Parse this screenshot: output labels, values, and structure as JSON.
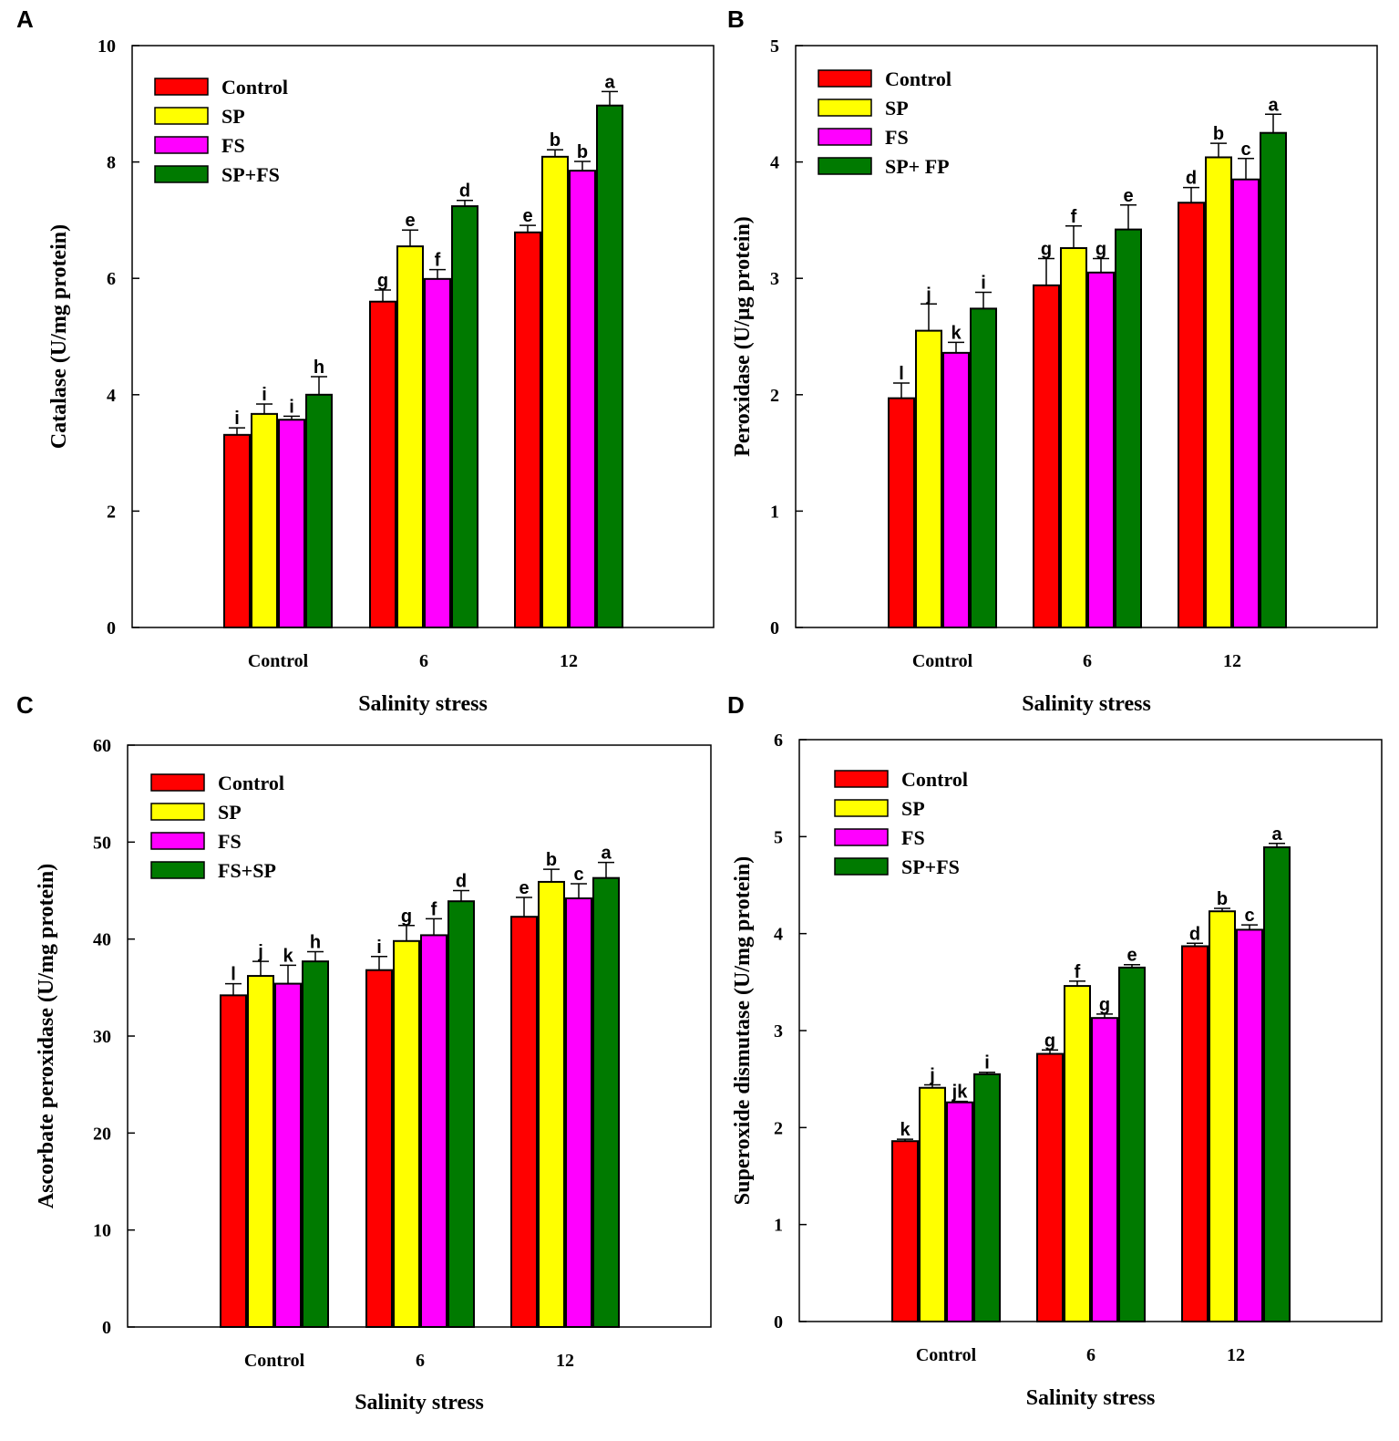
{
  "colors": {
    "Control": "#ff0000",
    "SP": "#ffff00",
    "FS": "#ff00ff",
    "Combo": "#007a00"
  },
  "chart_data": [
    {
      "type": "bar",
      "panel": "A",
      "ylabel": "Catalase (U/mg protein)",
      "xlabel": "Salinity stress",
      "ylim": [
        0,
        10
      ],
      "yticks": [
        0,
        2,
        4,
        6,
        8,
        10
      ],
      "categories": [
        "Control",
        "6",
        "12"
      ],
      "series": [
        {
          "name": "Control",
          "values": [
            3.31,
            5.6,
            6.79
          ],
          "errors": [
            0.12,
            0.2,
            0.12
          ],
          "letters": [
            "i",
            "g",
            "e"
          ]
        },
        {
          "name": "SP",
          "values": [
            3.67,
            6.55,
            8.09
          ],
          "errors": [
            0.17,
            0.28,
            0.12
          ],
          "letters": [
            "i",
            "e",
            "b"
          ]
        },
        {
          "name": "FS",
          "values": [
            3.57,
            5.99,
            7.85
          ],
          "errors": [
            0.06,
            0.16,
            0.16
          ],
          "letters": [
            "i",
            "f",
            "b"
          ]
        },
        {
          "name": "SP+FS",
          "values": [
            4.0,
            7.24,
            8.97
          ],
          "errors": [
            0.31,
            0.1,
            0.24
          ],
          "letters": [
            "h",
            "d",
            "a"
          ]
        }
      ]
    },
    {
      "type": "bar",
      "panel": "B",
      "ylabel": "Peroxidase (U/µg protein)",
      "xlabel": "Salinity stress",
      "ylim": [
        0,
        5
      ],
      "yticks": [
        0,
        1,
        2,
        3,
        4,
        5
      ],
      "categories": [
        "Control",
        "6",
        "12"
      ],
      "series": [
        {
          "name": "Control",
          "values": [
            1.97,
            2.94,
            3.65
          ],
          "errors": [
            0.13,
            0.23,
            0.13
          ],
          "letters": [
            "l",
            "g",
            "d"
          ]
        },
        {
          "name": "SP",
          "values": [
            2.55,
            3.26,
            4.04
          ],
          "errors": [
            0.23,
            0.19,
            0.12
          ],
          "letters": [
            "j",
            "f",
            "b"
          ]
        },
        {
          "name": "FS",
          "values": [
            2.36,
            3.05,
            3.85
          ],
          "errors": [
            0.09,
            0.12,
            0.18
          ],
          "letters": [
            "k",
            "g",
            "c"
          ]
        },
        {
          "name": "SP+ FP",
          "values": [
            2.74,
            3.42,
            4.25
          ],
          "errors": [
            0.14,
            0.21,
            0.16
          ],
          "letters": [
            "i",
            "e",
            "a"
          ]
        }
      ]
    },
    {
      "type": "bar",
      "panel": "C",
      "ylabel": "Ascorbate peroxidase (U/mg protein)",
      "xlabel": "Salinity stress",
      "ylim": [
        0,
        60
      ],
      "yticks": [
        0,
        10,
        20,
        30,
        40,
        50,
        60
      ],
      "categories": [
        "Control",
        "6",
        "12"
      ],
      "series": [
        {
          "name": "Control",
          "values": [
            34.2,
            36.8,
            42.3
          ],
          "errors": [
            1.2,
            1.4,
            2.0
          ],
          "letters": [
            "l",
            "i",
            "e"
          ]
        },
        {
          "name": "SP",
          "values": [
            36.2,
            39.8,
            45.9
          ],
          "errors": [
            1.5,
            1.6,
            1.3
          ],
          "letters": [
            "j",
            "g",
            "b"
          ]
        },
        {
          "name": "FS",
          "values": [
            35.4,
            40.4,
            44.2
          ],
          "errors": [
            1.9,
            1.7,
            1.5
          ],
          "letters": [
            "k",
            "f",
            "c"
          ]
        },
        {
          "name": "FS+SP",
          "values": [
            37.7,
            43.9,
            46.3
          ],
          "errors": [
            1.0,
            1.1,
            1.6
          ],
          "letters": [
            "h",
            "d",
            "a"
          ]
        }
      ]
    },
    {
      "type": "bar",
      "panel": "D",
      "ylabel": "Superoxide dismutase (U/mg protein)",
      "xlabel": "Salinity stress",
      "ylim": [
        0,
        6
      ],
      "yticks": [
        0,
        1,
        2,
        3,
        4,
        5,
        6
      ],
      "categories": [
        "Control",
        "6",
        "12"
      ],
      "series": [
        {
          "name": "Control",
          "values": [
            1.86,
            2.76,
            3.87
          ],
          "errors": [
            0.02,
            0.04,
            0.03
          ],
          "letters": [
            "k",
            "g",
            "d"
          ]
        },
        {
          "name": "SP",
          "values": [
            2.41,
            3.46,
            4.23
          ],
          "errors": [
            0.03,
            0.05,
            0.03
          ],
          "letters": [
            "j",
            "f",
            "b"
          ]
        },
        {
          "name": "FS",
          "values": [
            2.26,
            3.13,
            4.04
          ],
          "errors": [
            0.01,
            0.04,
            0.05
          ],
          "letters": [
            "jk",
            "g",
            "c"
          ]
        },
        {
          "name": "SP+FS",
          "values": [
            2.55,
            3.65,
            4.89
          ],
          "errors": [
            0.02,
            0.03,
            0.04
          ],
          "letters": [
            "i",
            "e",
            "a"
          ]
        }
      ]
    }
  ]
}
